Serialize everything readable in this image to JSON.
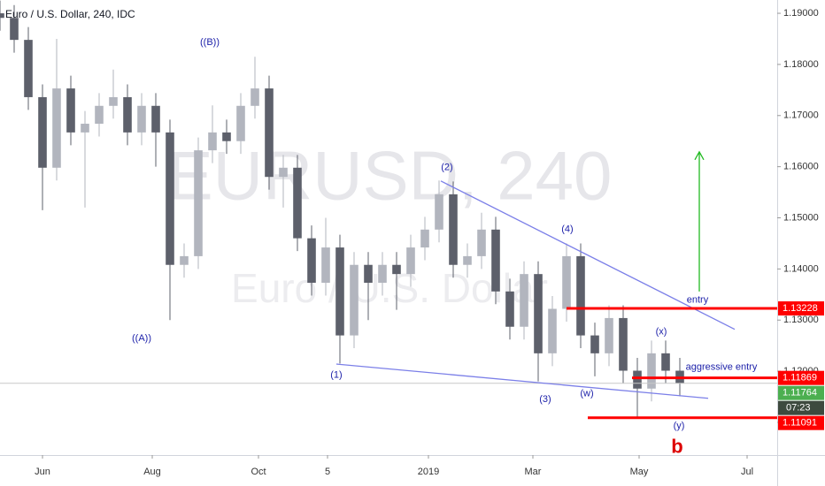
{
  "chart_data": {
    "type": "candlestick",
    "title": "Euro / U.S. Dollar, 240, IDC",
    "watermark": "EURUSD, 240",
    "watermark_sub": "Euro / U.S. Dollar",
    "up_color": "#b2b5be",
    "down_color": "#5d606b",
    "xlim": [
      -24,
      415
    ],
    "ylim": [
      1.1036,
      1.1926
    ],
    "xticks": [
      {
        "value": 0,
        "label": "Jun"
      },
      {
        "value": 62,
        "label": "Aug"
      },
      {
        "value": 122,
        "label": "Oct"
      },
      {
        "value": 161,
        "label": "5"
      },
      {
        "value": 218,
        "label": "2019"
      },
      {
        "value": 277,
        "label": "Mar"
      },
      {
        "value": 337,
        "label": "May"
      },
      {
        "value": 398,
        "label": "Jul"
      }
    ],
    "yticks": [
      {
        "value": 1.11,
        "label": "1.11000"
      },
      {
        "value": 1.12,
        "label": "1.12000"
      },
      {
        "value": 1.13,
        "label": "1.13000"
      },
      {
        "value": 1.14,
        "label": "1.14000"
      },
      {
        "value": 1.15,
        "label": "1.15000"
      },
      {
        "value": 1.16,
        "label": "1.16000"
      },
      {
        "value": 1.17,
        "label": "1.17000"
      },
      {
        "value": 1.18,
        "label": "1.18000"
      },
      {
        "value": 1.19,
        "label": "1.19000"
      }
    ],
    "x": [
      -24,
      -16,
      -8,
      0,
      8,
      16,
      24,
      32,
      40,
      48,
      56,
      64,
      72,
      80,
      88,
      96,
      104,
      112,
      120,
      128,
      136,
      144,
      152,
      160,
      168,
      176,
      184,
      192,
      200,
      208,
      216,
      224,
      232,
      240,
      248,
      256,
      264,
      272,
      280,
      288,
      296,
      304,
      312,
      320,
      328,
      336,
      344,
      352,
      360
    ],
    "open": [
      1.19,
      1.1891,
      1.1848,
      1.1736,
      1.1598,
      1.1753,
      1.1667,
      1.1684,
      1.1719,
      1.1736,
      1.1667,
      1.1719,
      1.1667,
      1.1408,
      1.1425,
      1.1632,
      1.1667,
      1.165,
      1.1719,
      1.1753,
      1.158,
      1.1598,
      1.146,
      1.1373,
      1.1442,
      1.127,
      1.1408,
      1.1373,
      1.1408,
      1.139,
      1.1442,
      1.1477,
      1.1546,
      1.1408,
      1.1425,
      1.1477,
      1.1356,
      1.1287,
      1.139,
      1.1235,
      1.1322,
      1.1425,
      1.127,
      1.1235,
      1.1304,
      1.1201,
      1.1166,
      1.1235,
      1.1201
    ],
    "high": [
      1.1925,
      1.1916,
      1.1873,
      1.1761,
      1.185,
      1.1778,
      1.1709,
      1.1744,
      1.179,
      1.1761,
      1.1744,
      1.1744,
      1.1692,
      1.145,
      1.1657,
      1.172,
      1.1692,
      1.1744,
      1.1815,
      1.1778,
      1.1623,
      1.1623,
      1.1485,
      1.15,
      1.1467,
      1.1433,
      1.1433,
      1.1433,
      1.1433,
      1.1467,
      1.1502,
      1.1573,
      1.1571,
      1.145,
      1.151,
      1.1502,
      1.1381,
      1.1415,
      1.1415,
      1.1347,
      1.145,
      1.145,
      1.1295,
      1.1329,
      1.1329,
      1.1226,
      1.126,
      1.126,
      1.1226
    ],
    "low": [
      1.1866,
      1.1823,
      1.1711,
      1.1515,
      1.1573,
      1.1642,
      1.152,
      1.1659,
      1.1694,
      1.1642,
      1.1642,
      1.16,
      1.13,
      1.1383,
      1.14,
      1.1607,
      1.1625,
      1.1625,
      1.1694,
      1.1555,
      1.152,
      1.1435,
      1.1348,
      1.1348,
      1.1215,
      1.1245,
      1.13,
      1.1348,
      1.132,
      1.1365,
      1.1417,
      1.1452,
      1.1383,
      1.1383,
      1.14,
      1.1331,
      1.1262,
      1.1262,
      1.118,
      1.121,
      1.1297,
      1.1245,
      1.119,
      1.121,
      1.1176,
      1.1109,
      1.1141,
      1.1176,
      1.1151
    ],
    "close": [
      1.1891,
      1.1848,
      1.1736,
      1.1598,
      1.1753,
      1.1667,
      1.1684,
      1.1719,
      1.1736,
      1.1667,
      1.1719,
      1.1667,
      1.1408,
      1.1425,
      1.1632,
      1.1667,
      1.165,
      1.1719,
      1.1753,
      1.158,
      1.1598,
      1.146,
      1.1373,
      1.1442,
      1.127,
      1.1408,
      1.1373,
      1.1408,
      1.139,
      1.1442,
      1.1477,
      1.1546,
      1.1408,
      1.1425,
      1.1477,
      1.1356,
      1.1287,
      1.139,
      1.1235,
      1.1322,
      1.1425,
      1.127,
      1.1235,
      1.1304,
      1.1201,
      1.1166,
      1.1235,
      1.1201,
      1.1176
    ],
    "last_price": 1.11764,
    "last_color": "#4caf50",
    "countdown": "07:23",
    "levels": [
      {
        "value": 1.13228,
        "start": 296,
        "color": "#ff0000"
      },
      {
        "value": 1.11869,
        "start": 333,
        "color": "#ff0000"
      },
      {
        "value": 1.11091,
        "start": 308,
        "color": "#ff0000"
      }
    ],
    "trend_lines": [
      {
        "x": [
          225,
          391
        ],
        "y": [
          1.1572,
          1.1282
        ],
        "color": "#7b7fe8"
      },
      {
        "x": [
          166,
          376
        ],
        "y": [
          1.1214,
          1.1147
        ],
        "color": "#7b7fe8"
      }
    ],
    "arrow": {
      "x": [
        371,
        371
      ],
      "y": [
        1.1356,
        1.1629
      ],
      "color": "#22bb22"
    },
    "annotations": [
      {
        "text": "((B))",
        "x": 94.5,
        "y": 1.1843
      },
      {
        "text": "((A))",
        "x": 56,
        "y": 1.1264
      },
      {
        "text": "(1)",
        "x": 166,
        "y": 1.1192
      },
      {
        "text": "(2)",
        "x": 228.5,
        "y": 1.1598
      },
      {
        "text": "(3)",
        "x": 284,
        "y": 1.1145
      },
      {
        "text": "(4)",
        "x": 296.5,
        "y": 1.1477
      },
      {
        "text": "(w)",
        "x": 307.5,
        "y": 1.1156
      },
      {
        "text": "(x)",
        "x": 349.5,
        "y": 1.1277
      },
      {
        "text": "(y)",
        "x": 359.5,
        "y": 1.1093
      },
      {
        "text": "entry",
        "x": 370,
        "y": 1.1339
      },
      {
        "text": "aggressive entry",
        "x": 383.5,
        "y": 1.1208
      },
      {
        "text": "b",
        "x": 358.5,
        "y": 1.105,
        "color": "#dd0000"
      }
    ]
  }
}
